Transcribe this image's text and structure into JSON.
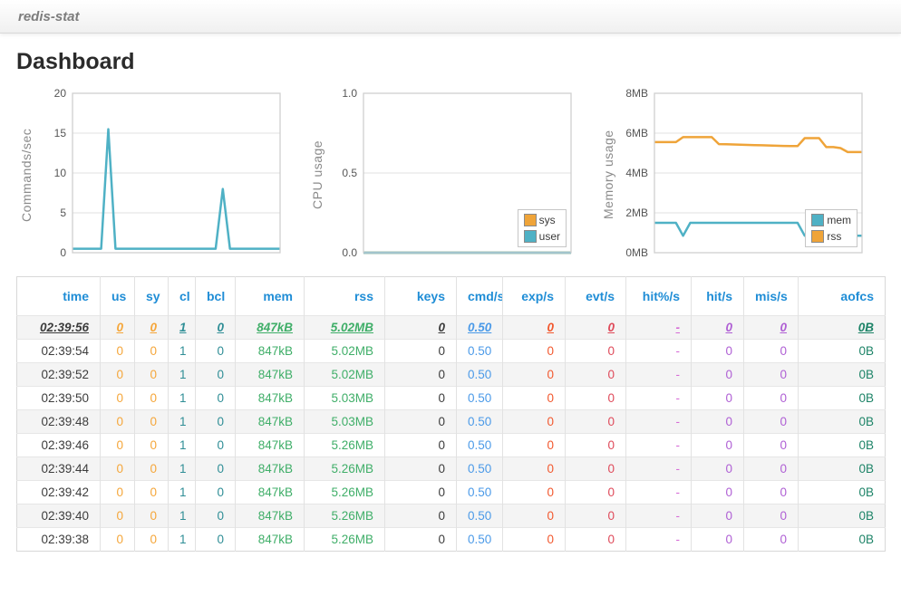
{
  "navbar": {
    "brand": "redis-stat"
  },
  "page": {
    "title": "Dashboard"
  },
  "colors": {
    "header_blue": "#1f8dd6",
    "chart_teal": "#4fb1c5",
    "chart_orange": "#efa439"
  },
  "charts": [
    {
      "name": "commands-per-sec",
      "type": "line",
      "ylabel": "Commands/sec",
      "ymin": 0,
      "ymax": 20,
      "grid": true,
      "legend": false,
      "yticks": [
        {
          "v": 0,
          "label": "0"
        },
        {
          "v": 5,
          "label": "5"
        },
        {
          "v": 10,
          "label": "10"
        },
        {
          "v": 15,
          "label": "15"
        },
        {
          "v": 20,
          "label": "20"
        }
      ],
      "series": [
        {
          "name": "cmd",
          "color": "#4fb1c5",
          "values": [
            0.5,
            0.5,
            0.5,
            0.5,
            0.5,
            15.5,
            0.5,
            0.5,
            0.5,
            0.5,
            0.5,
            0.5,
            0.5,
            0.5,
            0.5,
            0.5,
            0.5,
            0.5,
            0.5,
            0.5,
            0.5,
            8,
            0.5,
            0.5,
            0.5,
            0.5,
            0.5,
            0.5,
            0.5,
            0.5
          ]
        }
      ]
    },
    {
      "name": "cpu-usage",
      "type": "line",
      "ylabel": "CPU usage",
      "ymin": 0,
      "ymax": 1,
      "grid": true,
      "legend": true,
      "yticks": [
        {
          "v": 0,
          "label": "0.0"
        },
        {
          "v": 0.5,
          "label": "0.5"
        },
        {
          "v": 1,
          "label": "1.0"
        }
      ],
      "series": [
        {
          "name": "sys",
          "color": "#efa439",
          "values": [
            0,
            0,
            0,
            0,
            0,
            0,
            0,
            0,
            0,
            0,
            0,
            0,
            0,
            0,
            0,
            0,
            0,
            0,
            0,
            0,
            0,
            0,
            0,
            0,
            0,
            0,
            0,
            0,
            0,
            0
          ]
        },
        {
          "name": "user",
          "color": "#4fb1c5",
          "values": [
            0,
            0,
            0,
            0,
            0,
            0,
            0,
            0,
            0,
            0,
            0,
            0,
            0,
            0,
            0,
            0,
            0,
            0,
            0,
            0,
            0,
            0,
            0,
            0,
            0,
            0,
            0,
            0,
            0,
            0
          ]
        }
      ]
    },
    {
      "name": "memory-usage",
      "type": "line",
      "ylabel": "Memory usage",
      "ymin": 0,
      "ymax": 8,
      "grid": true,
      "legend": true,
      "yticks": [
        {
          "v": 0,
          "label": "0MB"
        },
        {
          "v": 2,
          "label": "2MB"
        },
        {
          "v": 4,
          "label": "4MB"
        },
        {
          "v": 6,
          "label": "6MB"
        },
        {
          "v": 8,
          "label": "8MB"
        }
      ],
      "series": [
        {
          "name": "mem",
          "color": "#4fb1c5",
          "values": [
            1.5,
            1.5,
            1.5,
            1.5,
            0.85,
            1.5,
            1.5,
            1.5,
            1.5,
            1.5,
            1.5,
            1.5,
            1.5,
            1.5,
            1.5,
            1.5,
            1.5,
            1.5,
            1.5,
            1.5,
            1.5,
            0.85,
            0.85,
            0.85,
            0.85,
            0.85,
            0.85,
            0.85,
            0.85,
            0.85
          ]
        },
        {
          "name": "rss",
          "color": "#efa439",
          "values": [
            5.55,
            5.55,
            5.55,
            5.55,
            5.8,
            5.8,
            5.8,
            5.8,
            5.8,
            5.45,
            5.44,
            5.43,
            5.42,
            5.41,
            5.4,
            5.39,
            5.38,
            5.37,
            5.36,
            5.35,
            5.35,
            5.75,
            5.75,
            5.75,
            5.3,
            5.3,
            5.25,
            5.05,
            5.05,
            5.05
          ]
        }
      ]
    }
  ],
  "table": {
    "live_row_index": 0,
    "columns": [
      {
        "key": "time",
        "label": "time",
        "color": "#3c3c3c"
      },
      {
        "key": "us",
        "label": "us",
        "color": "#f5a63a"
      },
      {
        "key": "sy",
        "label": "sy",
        "color": "#f5a63a"
      },
      {
        "key": "cl",
        "label": "cl",
        "color": "#2f8e96"
      },
      {
        "key": "bcl",
        "label": "bcl",
        "color": "#2f8e96"
      },
      {
        "key": "mem",
        "label": "mem",
        "color": "#3fae68"
      },
      {
        "key": "rss",
        "label": "rss",
        "color": "#3fae68"
      },
      {
        "key": "keys",
        "label": "keys",
        "color": "#3c3c3c"
      },
      {
        "key": "cmd_s",
        "label": "cmd/s",
        "color": "#4b9ae8"
      },
      {
        "key": "exp_s",
        "label": "exp/s",
        "color": "#f2582e"
      },
      {
        "key": "evt_s",
        "label": "evt/s",
        "color": "#df4a5a"
      },
      {
        "key": "hitpct_s",
        "label": "hit%/s",
        "color": "#d66bd6"
      },
      {
        "key": "hit_s",
        "label": "hit/s",
        "color": "#af5fd4"
      },
      {
        "key": "mis_s",
        "label": "mis/s",
        "color": "#af5fd4"
      },
      {
        "key": "aofcs",
        "label": "aofcs",
        "color": "#1e8468"
      }
    ],
    "rows": [
      [
        "02:39:56",
        "0",
        "0",
        "1",
        "0",
        "847kB",
        "5.02MB",
        "0",
        "0.50",
        "0",
        "0",
        "-",
        "0",
        "0",
        "0B"
      ],
      [
        "02:39:54",
        "0",
        "0",
        "1",
        "0",
        "847kB",
        "5.02MB",
        "0",
        "0.50",
        "0",
        "0",
        "-",
        "0",
        "0",
        "0B"
      ],
      [
        "02:39:52",
        "0",
        "0",
        "1",
        "0",
        "847kB",
        "5.02MB",
        "0",
        "0.50",
        "0",
        "0",
        "-",
        "0",
        "0",
        "0B"
      ],
      [
        "02:39:50",
        "0",
        "0",
        "1",
        "0",
        "847kB",
        "5.03MB",
        "0",
        "0.50",
        "0",
        "0",
        "-",
        "0",
        "0",
        "0B"
      ],
      [
        "02:39:48",
        "0",
        "0",
        "1",
        "0",
        "847kB",
        "5.03MB",
        "0",
        "0.50",
        "0",
        "0",
        "-",
        "0",
        "0",
        "0B"
      ],
      [
        "02:39:46",
        "0",
        "0",
        "1",
        "0",
        "847kB",
        "5.26MB",
        "0",
        "0.50",
        "0",
        "0",
        "-",
        "0",
        "0",
        "0B"
      ],
      [
        "02:39:44",
        "0",
        "0",
        "1",
        "0",
        "847kB",
        "5.26MB",
        "0",
        "0.50",
        "0",
        "0",
        "-",
        "0",
        "0",
        "0B"
      ],
      [
        "02:39:42",
        "0",
        "0",
        "1",
        "0",
        "847kB",
        "5.26MB",
        "0",
        "0.50",
        "0",
        "0",
        "-",
        "0",
        "0",
        "0B"
      ],
      [
        "02:39:40",
        "0",
        "0",
        "1",
        "0",
        "847kB",
        "5.26MB",
        "0",
        "0.50",
        "0",
        "0",
        "-",
        "0",
        "0",
        "0B"
      ],
      [
        "02:39:38",
        "0",
        "0",
        "1",
        "0",
        "847kB",
        "5.26MB",
        "0",
        "0.50",
        "0",
        "0",
        "-",
        "0",
        "0",
        "0B"
      ]
    ]
  }
}
